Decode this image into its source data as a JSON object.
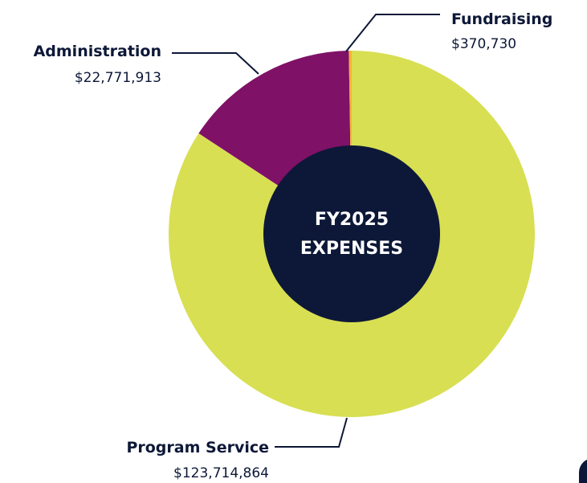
{
  "chart_data": {
    "type": "pie",
    "center_title": [
      "FY2025",
      "EXPENSES"
    ],
    "categories": [
      "Program Service",
      "Administration",
      "Fundraising"
    ],
    "values": [
      123714864,
      22771913,
      370730
    ],
    "value_labels": [
      "$123,714,864",
      "$22,771,913",
      "$370,730"
    ],
    "colors": [
      "#d8df52",
      "#7f1167",
      "#f5b335"
    ],
    "center_color": "#0d1838",
    "label_color": "#0d1838"
  }
}
